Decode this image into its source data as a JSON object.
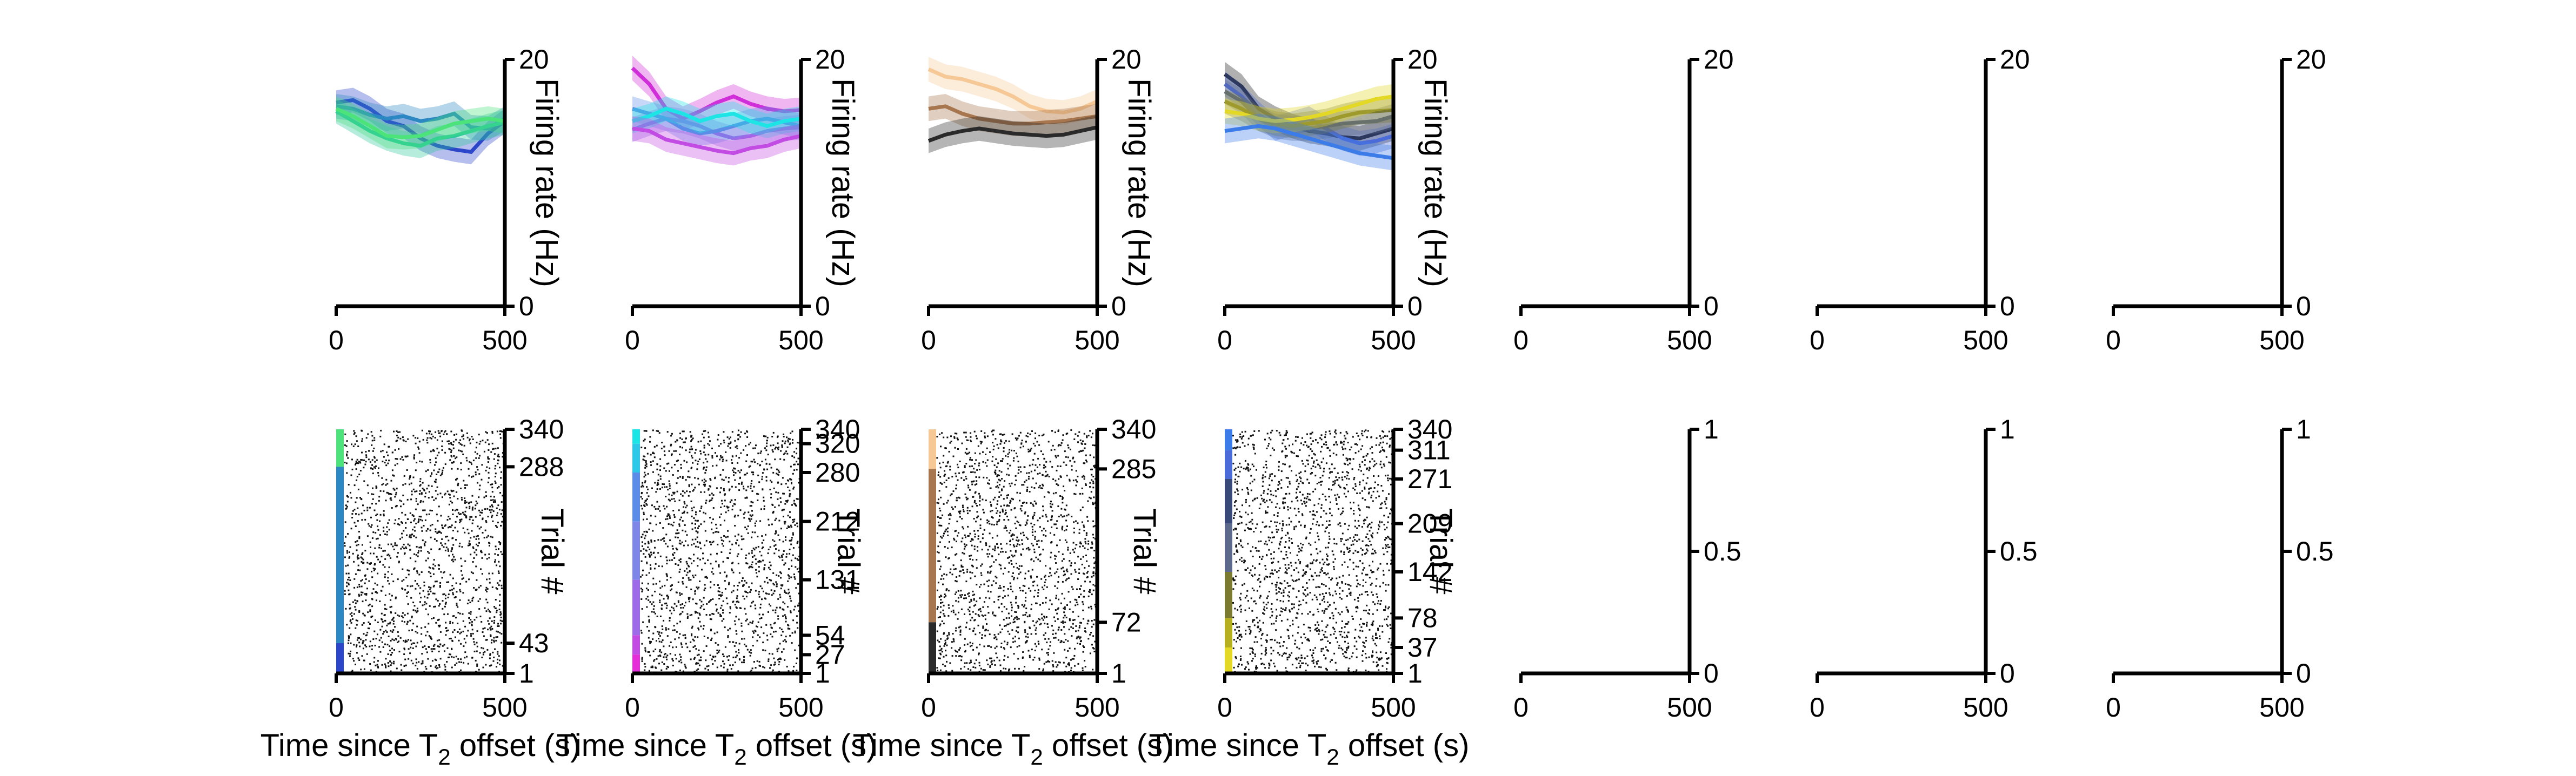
{
  "chart_data": {
    "type": "line",
    "layout": "2x7 panel grid: top row PSTH (firing rate) with shaded error bands, bottom row spike raster with trial-condition color strip",
    "x_tick_labels": [
      "0",
      "500"
    ],
    "xlim": [
      0,
      500
    ],
    "xlabel_main": "Time since T",
    "xlabel_sub": "2",
    "xlabel_tail": " offset (s)",
    "fr_ylabel": "Firing rate (Hz)",
    "fr_ylim": [
      0,
      20
    ],
    "fr_ytick_labels": [
      "0",
      "20"
    ],
    "raster_ylabel": "Trial #",
    "empty_raster_ytick_labels": [
      "0",
      "0.5",
      "1"
    ],
    "panels": [
      {
        "series": [
          {
            "color": "#2B46C9",
            "values": [
              16.5,
              16.7,
              16.0,
              15.0,
              14.6,
              13.6,
              13.0,
              12.7,
              12.5,
              14.0,
              15.0
            ]
          },
          {
            "color": "#2C88C2",
            "values": [
              16.2,
              16.0,
              15.5,
              15.2,
              15.4,
              15.0,
              15.2,
              15.6,
              14.5,
              14.4,
              15.2
            ]
          },
          {
            "color": "#2BC99A",
            "values": [
              15.8,
              15.0,
              14.2,
              13.6,
              13.2,
              13.0,
              13.6,
              13.8,
              14.2,
              14.6,
              14.9
            ]
          },
          {
            "color": "#4BE37A",
            "values": [
              16.0,
              15.4,
              14.6,
              13.8,
              13.7,
              13.8,
              14.3,
              14.8,
              15.0,
              15.2,
              15.0
            ]
          }
        ],
        "raster_tick_labels": [
          "340",
          "288",
          "43",
          "1"
        ],
        "raster_tick_values": [
          340,
          288,
          43,
          1
        ],
        "strip": [
          {
            "from": 288,
            "to": 340,
            "color": "#4BE37A"
          },
          {
            "from": 43,
            "to": 288,
            "color": "#2C88C2"
          },
          {
            "from": 1,
            "to": 43,
            "color": "#2B46C9"
          }
        ]
      },
      {
        "series": [
          {
            "color": "#D02ED8",
            "values": [
              19.3,
              18.0,
              16.0,
              15.2,
              15.8,
              16.5,
              17.0,
              16.4,
              16.0,
              15.8,
              15.9
            ]
          },
          {
            "color": "#9D6BE8",
            "values": [
              14.3,
              14.8,
              15.2,
              15.0,
              14.6,
              14.0,
              13.6,
              13.8,
              14.2,
              14.4,
              14.5
            ]
          },
          {
            "color": "#5B8DE8",
            "values": [
              16.0,
              15.6,
              15.2,
              14.4,
              14.0,
              14.2,
              14.6,
              15.0,
              15.2,
              14.9,
              14.6
            ]
          },
          {
            "color": "#1EE5E5",
            "values": [
              15.0,
              15.4,
              16.0,
              15.6,
              15.0,
              15.4,
              15.6,
              15.0,
              14.6,
              15.0,
              15.2
            ]
          },
          {
            "color": "#C24BE3",
            "values": [
              14.4,
              14.2,
              13.5,
              13.2,
              12.9,
              12.6,
              12.4,
              12.8,
              13.0,
              13.5,
              13.8
            ]
          }
        ],
        "raster_tick_labels": [
          "340",
          "320",
          "280",
          "212",
          "131",
          "54",
          "27",
          "1"
        ],
        "raster_tick_values": [
          340,
          320,
          280,
          212,
          131,
          54,
          27,
          1
        ],
        "strip": [
          {
            "from": 320,
            "to": 340,
            "color": "#1EE5E5"
          },
          {
            "from": 280,
            "to": 320,
            "color": "#2FC8E8"
          },
          {
            "from": 212,
            "to": 280,
            "color": "#5B8DE8"
          },
          {
            "from": 131,
            "to": 212,
            "color": "#7E86E8"
          },
          {
            "from": 54,
            "to": 131,
            "color": "#9D6BE8"
          },
          {
            "from": 27,
            "to": 54,
            "color": "#C24BE3"
          },
          {
            "from": 1,
            "to": 27,
            "color": "#E52ED8"
          }
        ]
      },
      {
        "series": [
          {
            "color": "#F5C896",
            "values": [
              19.2,
              18.6,
              18.4,
              18.0,
              17.6,
              17.0,
              16.2,
              15.8,
              15.7,
              16.0,
              16.6
            ]
          },
          {
            "color": "#A7764E",
            "values": [
              16.0,
              16.2,
              15.6,
              15.2,
              15.0,
              14.8,
              14.8,
              14.9,
              15.0,
              15.2,
              15.4
            ]
          },
          {
            "color": "#2A2A2A",
            "values": [
              13.4,
              13.9,
              14.2,
              14.4,
              14.2,
              14.0,
              13.9,
              13.8,
              13.9,
              14.2,
              14.5
            ]
          }
        ],
        "raster_tick_labels": [
          "340",
          "285",
          "72",
          "1"
        ],
        "raster_tick_values": [
          340,
          285,
          72,
          1
        ],
        "strip": [
          {
            "from": 285,
            "to": 340,
            "color": "#F5C896"
          },
          {
            "from": 72,
            "to": 285,
            "color": "#A7764E"
          },
          {
            "from": 1,
            "to": 72,
            "color": "#2A2A2A"
          }
        ]
      },
      {
        "series": [
          {
            "color": "#1E1E1E",
            "values": [
              18.8,
              17.8,
              16.0,
              15.2,
              14.6,
              14.2,
              14.0,
              13.7,
              13.6,
              14.0,
              14.4
            ]
          },
          {
            "color": "#4B6BD8",
            "values": [
              18.0,
              17.0,
              15.6,
              14.4,
              14.8,
              15.2,
              14.4,
              13.6,
              13.2,
              13.4,
              13.8
            ]
          },
          {
            "color": "#5E6A8C",
            "values": [
              17.4,
              16.6,
              15.2,
              14.6,
              14.4,
              14.4,
              14.6,
              14.8,
              14.9,
              15.0,
              15.4
            ]
          },
          {
            "color": "#7A7A30",
            "values": [
              16.6,
              16.0,
              15.2,
              14.8,
              14.6,
              14.8,
              15.0,
              15.4,
              15.7,
              15.8,
              15.9
            ]
          },
          {
            "color": "#E3D826",
            "values": [
              15.8,
              15.6,
              15.2,
              15.0,
              15.1,
              15.3,
              15.6,
              16.0,
              16.4,
              16.8,
              17.0
            ]
          },
          {
            "color": "#3B7CE8",
            "values": [
              14.2,
              14.4,
              14.6,
              14.4,
              14.0,
              13.6,
              13.2,
              12.8,
              12.4,
              12.2,
              12.0
            ]
          }
        ],
        "raster_tick_labels": [
          "340",
          "311",
          "271",
          "209",
          "142",
          "78",
          "37",
          "1"
        ],
        "raster_tick_values": [
          340,
          311,
          271,
          209,
          142,
          78,
          37,
          1
        ],
        "strip": [
          {
            "from": 311,
            "to": 340,
            "color": "#3B7CE8"
          },
          {
            "from": 271,
            "to": 311,
            "color": "#4B6BD8"
          },
          {
            "from": 209,
            "to": 271,
            "color": "#3A4A78"
          },
          {
            "from": 142,
            "to": 209,
            "color": "#5E6A8C"
          },
          {
            "from": 78,
            "to": 142,
            "color": "#7A7A30"
          },
          {
            "from": 37,
            "to": 78,
            "color": "#B6B020"
          },
          {
            "from": 1,
            "to": 37,
            "color": "#E3D826"
          }
        ]
      },
      {
        "series": [],
        "raster_tick_labels": [],
        "strip": []
      },
      {
        "series": [],
        "raster_tick_labels": [],
        "strip": []
      },
      {
        "series": [],
        "raster_tick_labels": [],
        "strip": []
      }
    ]
  }
}
